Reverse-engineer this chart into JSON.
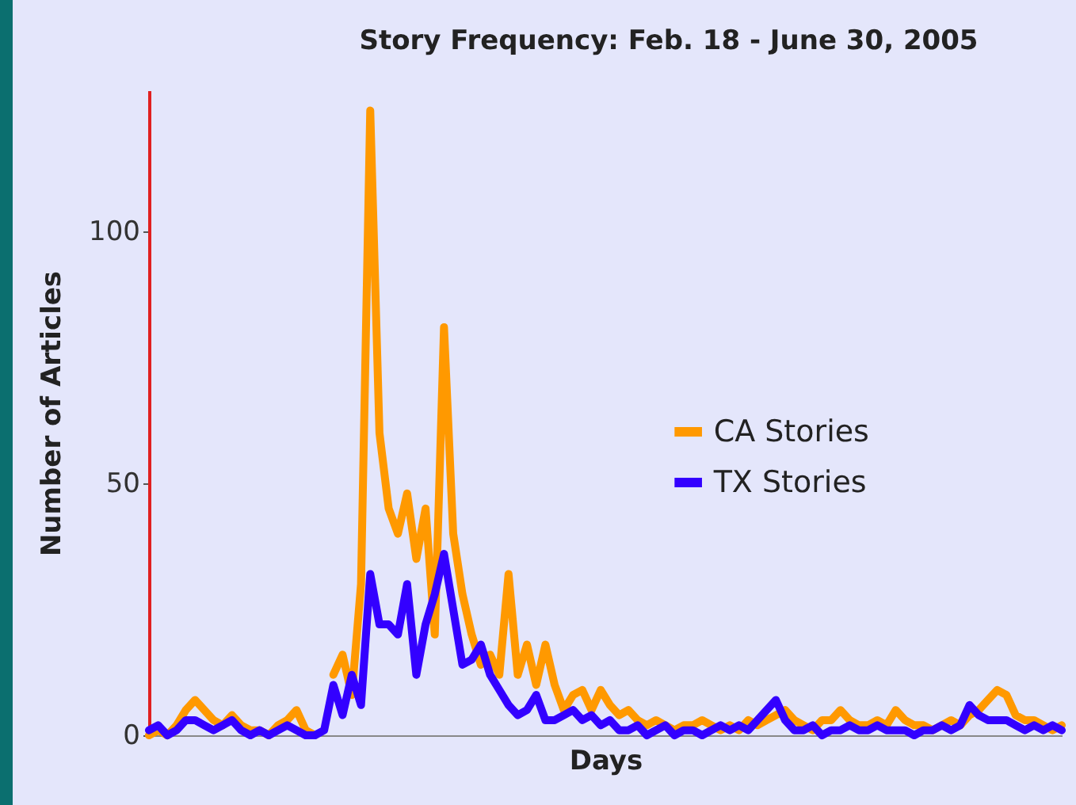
{
  "chart_data": {
    "type": "line",
    "title": "Story Frequency: Feb. 18 - June 30, 2005",
    "xlabel": "Days",
    "ylabel": "Number of Articles",
    "categories": [
      null,
      null,
      null,
      null,
      null,
      null,
      null,
      null,
      null,
      null,
      null,
      null,
      null,
      null,
      null,
      null,
      null,
      null,
      null,
      null,
      null,
      null,
      null,
      null,
      null,
      null,
      null,
      null,
      null,
      null,
      null,
      null,
      null,
      null,
      null,
      null,
      null,
      null,
      null,
      null,
      null,
      null,
      null,
      null,
      null,
      null,
      null,
      null,
      null,
      null,
      null,
      null,
      null,
      null,
      null,
      null,
      null,
      null,
      null,
      null,
      null,
      null,
      null,
      null,
      null,
      null,
      null,
      null,
      null,
      null,
      null,
      null,
      null,
      null,
      null,
      null,
      null,
      null,
      null,
      null,
      null,
      null,
      null,
      null,
      null,
      null,
      null,
      null,
      null,
      null,
      null,
      null,
      null,
      null,
      null,
      null,
      null,
      null,
      null,
      null
    ],
    "series": [
      {
        "name": "CA Stories",
        "color": "#ff9900",
        "values": [
          0,
          1,
          0,
          2,
          5,
          7,
          5,
          3,
          2,
          4,
          2,
          1,
          1,
          0,
          2,
          3,
          5,
          1,
          0,
          null,
          12,
          16,
          8,
          30,
          124,
          60,
          45,
          40,
          48,
          35,
          45,
          20,
          81,
          40,
          28,
          20,
          14,
          16,
          12,
          32,
          12,
          18,
          10,
          18,
          10,
          5,
          8,
          9,
          5,
          9,
          6,
          4,
          5,
          3,
          2,
          3,
          2,
          1,
          2,
          2,
          3,
          2,
          1,
          2,
          1,
          3,
          2,
          3,
          4,
          5,
          3,
          2,
          1,
          3,
          3,
          5,
          3,
          2,
          2,
          3,
          2,
          5,
          3,
          2,
          2,
          1,
          2,
          3,
          2,
          4,
          5,
          7,
          9,
          8,
          4,
          3,
          3,
          2,
          1,
          2
        ]
      },
      {
        "name": "TX Stories",
        "color": "#3300ff",
        "values": [
          1,
          2,
          0,
          1,
          3,
          3,
          2,
          1,
          2,
          3,
          1,
          0,
          1,
          0,
          1,
          2,
          1,
          0,
          0,
          1,
          10,
          4,
          12,
          6,
          32,
          22,
          22,
          20,
          30,
          12,
          22,
          28,
          36,
          25,
          14,
          15,
          18,
          12,
          9,
          6,
          4,
          5,
          8,
          3,
          3,
          4,
          5,
          3,
          4,
          2,
          3,
          1,
          1,
          2,
          0,
          1,
          2,
          0,
          1,
          1,
          0,
          1,
          2,
          1,
          2,
          1,
          3,
          5,
          7,
          3,
          1,
          1,
          2,
          0,
          1,
          1,
          2,
          1,
          1,
          2,
          1,
          1,
          1,
          0,
          1,
          1,
          2,
          1,
          2,
          6,
          4,
          3,
          3,
          3,
          2,
          1,
          2,
          1,
          2,
          1
        ]
      }
    ],
    "ylim": [
      0,
      128
    ],
    "yticks": [
      0,
      50,
      100
    ],
    "legend": "right"
  }
}
